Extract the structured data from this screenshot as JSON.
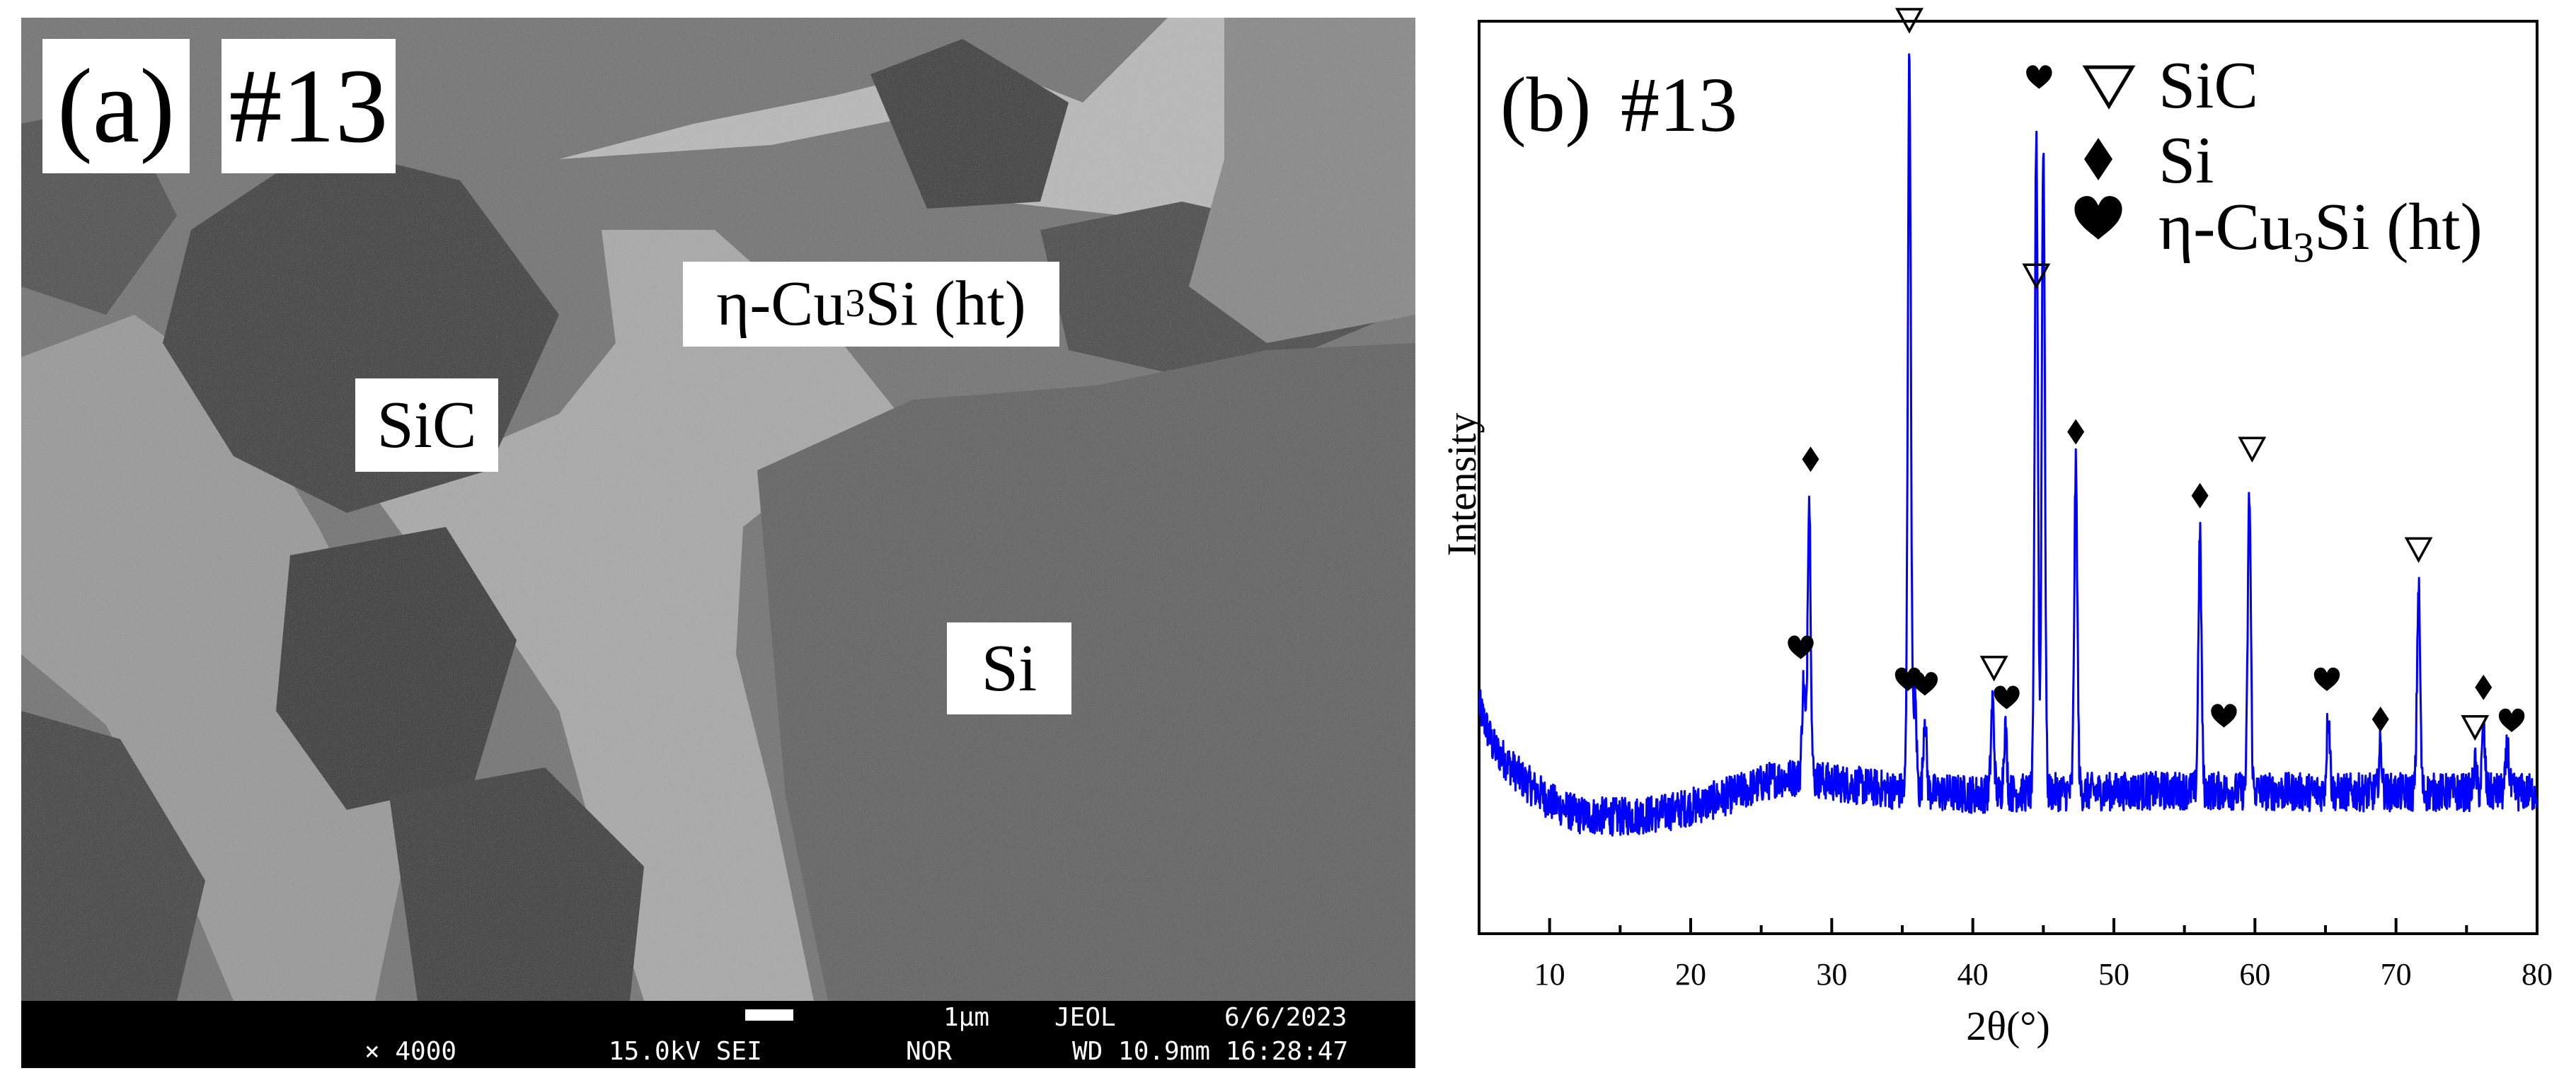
{
  "panel_a": {
    "letter": "(a)",
    "sample": "#13",
    "phase_labels": {
      "cu3si_prefix": "η-Cu",
      "cu3si_sub": "3",
      "cu3si_suffix": "Si (ht)",
      "sic": "SiC",
      "si": "Si"
    },
    "databar": {
      "scale": "1μm",
      "vendor": "JEOL",
      "date": "6/6/2023",
      "magnification": "× 4000",
      "voltage_detector": "15.0kV SEI",
      "mode": "NOR",
      "wd_time": "WD 10.9mm 16:28:47"
    }
  },
  "panel_b": {
    "letter": "(b)",
    "sample": "#13",
    "legend": [
      {
        "symbol": "open-triangle",
        "label": "SiC"
      },
      {
        "symbol": "filled-diamond",
        "label": "Si"
      },
      {
        "symbol": "filled-heart",
        "label_prefix": "η-Cu",
        "label_sub": "3",
        "label_suffix": "Si (ht)"
      }
    ]
  },
  "chart_data": {
    "type": "line",
    "title": "",
    "xlabel": "2θ(°)",
    "ylabel": "Intensity",
    "xlim": [
      5,
      80
    ],
    "ylim": [
      0,
      100
    ],
    "x_ticks": [
      10,
      20,
      30,
      40,
      50,
      60,
      70,
      80
    ],
    "y_ticks": [],
    "grid": false,
    "legend_position": "top-right",
    "line_color": "#0000ff",
    "series": [
      {
        "baseline": [
          [
            5,
            25
          ],
          [
            6,
            20.5
          ],
          [
            8,
            17
          ],
          [
            10,
            14.5
          ],
          [
            12,
            13
          ],
          [
            15,
            12.8
          ],
          [
            18,
            13.2
          ],
          [
            21,
            14.3
          ],
          [
            24,
            15.8
          ],
          [
            26,
            17
          ],
          [
            28,
            17.2
          ],
          [
            30,
            16.6
          ],
          [
            35,
            15.6
          ],
          [
            40,
            15.3
          ],
          [
            45,
            15.5
          ],
          [
            50,
            15.6
          ],
          [
            55,
            15.7
          ],
          [
            60,
            15.6
          ],
          [
            65,
            15.5
          ],
          [
            70,
            15.5
          ],
          [
            75,
            15.5
          ],
          [
            80,
            15.5
          ]
        ],
        "peaks": [
          {
            "x": 28.0,
            "y": 27.5,
            "phase": "Cu3Si"
          },
          {
            "x": 28.4,
            "y": 48.0,
            "phase": "Si"
          },
          {
            "x": 35.5,
            "y": 96.0,
            "phase": "SiC"
          },
          {
            "x": 35.9,
            "y": 26.0,
            "phase": "Cu3Si"
          },
          {
            "x": 36.6,
            "y": 24.0,
            "phase": "Cu3Si"
          },
          {
            "x": 41.4,
            "y": 25.5,
            "phase": "SiC"
          },
          {
            "x": 42.3,
            "y": 22.5,
            "phase": "Cu3Si"
          },
          {
            "x": 44.5,
            "y": 88.0,
            "phase": "Cu3Si"
          },
          {
            "x": 45.0,
            "y": 87.0,
            "phase": "Cu3Si"
          },
          {
            "x": 47.3,
            "y": 51.0,
            "phase": "Si"
          },
          {
            "x": 56.1,
            "y": 43.5,
            "phase": "Si"
          },
          {
            "x": 59.6,
            "y": 48.0,
            "phase": "SiC"
          },
          {
            "x": 65.2,
            "y": 24.5,
            "phase": "Cu3Si"
          },
          {
            "x": 68.9,
            "y": 20.5,
            "phase": "Si"
          },
          {
            "x": 71.6,
            "y": 38.0,
            "phase": "SiC"
          },
          {
            "x": 75.6,
            "y": 18.5,
            "phase": "SiC"
          },
          {
            "x": 76.2,
            "y": 22.0,
            "phase": "Si"
          },
          {
            "x": 77.9,
            "y": 20.5,
            "phase": "Cu3Si"
          }
        ]
      }
    ],
    "markers": [
      {
        "x": 35.5,
        "y": 100.0,
        "symbol": "open-triangle"
      },
      {
        "x": 44.5,
        "y": 72.0,
        "symbol": "open-triangle"
      },
      {
        "x": 41.5,
        "y": 29.0,
        "symbol": "open-triangle"
      },
      {
        "x": 59.8,
        "y": 53.0,
        "symbol": "open-triangle"
      },
      {
        "x": 71.6,
        "y": 42.0,
        "symbol": "open-triangle"
      },
      {
        "x": 75.6,
        "y": 22.5,
        "symbol": "open-triangle"
      },
      {
        "x": 28.5,
        "y": 52.0,
        "symbol": "filled-diamond"
      },
      {
        "x": 47.3,
        "y": 55.0,
        "symbol": "filled-diamond"
      },
      {
        "x": 56.1,
        "y": 48.0,
        "symbol": "filled-diamond"
      },
      {
        "x": 68.9,
        "y": 23.5,
        "symbol": "filled-diamond"
      },
      {
        "x": 76.2,
        "y": 27.0,
        "symbol": "filled-diamond"
      },
      {
        "x": 27.8,
        "y": 31.5,
        "symbol": "filled-heart"
      },
      {
        "x": 35.4,
        "y": 28.0,
        "symbol": "filled-heart"
      },
      {
        "x": 36.6,
        "y": 27.5,
        "symbol": "filled-heart"
      },
      {
        "x": 42.4,
        "y": 26.0,
        "symbol": "filled-heart"
      },
      {
        "x": 44.7,
        "y": 94.0,
        "symbol": "filled-heart"
      },
      {
        "x": 57.8,
        "y": 24.0,
        "symbol": "filled-heart"
      },
      {
        "x": 65.1,
        "y": 28.0,
        "symbol": "filled-heart"
      },
      {
        "x": 78.2,
        "y": 23.5,
        "symbol": "filled-heart"
      }
    ]
  }
}
